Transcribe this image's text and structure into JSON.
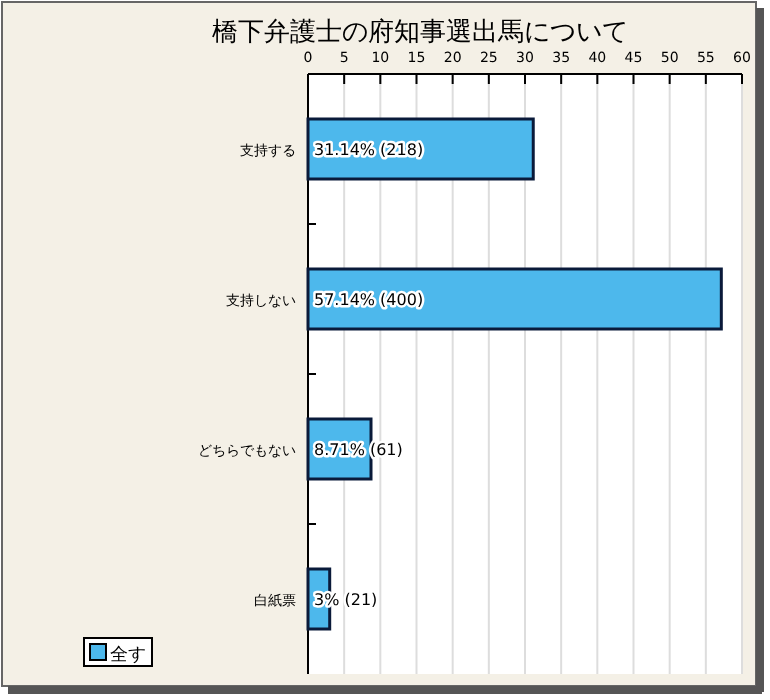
{
  "chart_data": {
    "type": "bar",
    "orientation": "horizontal",
    "title": "橋下弁護士の府知事選出馬について",
    "categories": [
      "支持する",
      "支持しない",
      "どちらでもない",
      "白紙票"
    ],
    "series": [
      {
        "name": "全す",
        "color": "#4db8ec",
        "values": [
          31.14,
          57.14,
          8.71,
          3
        ],
        "value_labels": [
          "31.14% (218)",
          "57.14% (400)",
          "8.71% (61)",
          "3% (21)"
        ]
      }
    ],
    "xlim": [
      0,
      60
    ],
    "xticks": [
      0,
      5,
      10,
      15,
      20,
      25,
      30,
      35,
      40,
      45,
      50,
      55,
      60
    ],
    "grid": "x",
    "legend": "bottom left"
  }
}
